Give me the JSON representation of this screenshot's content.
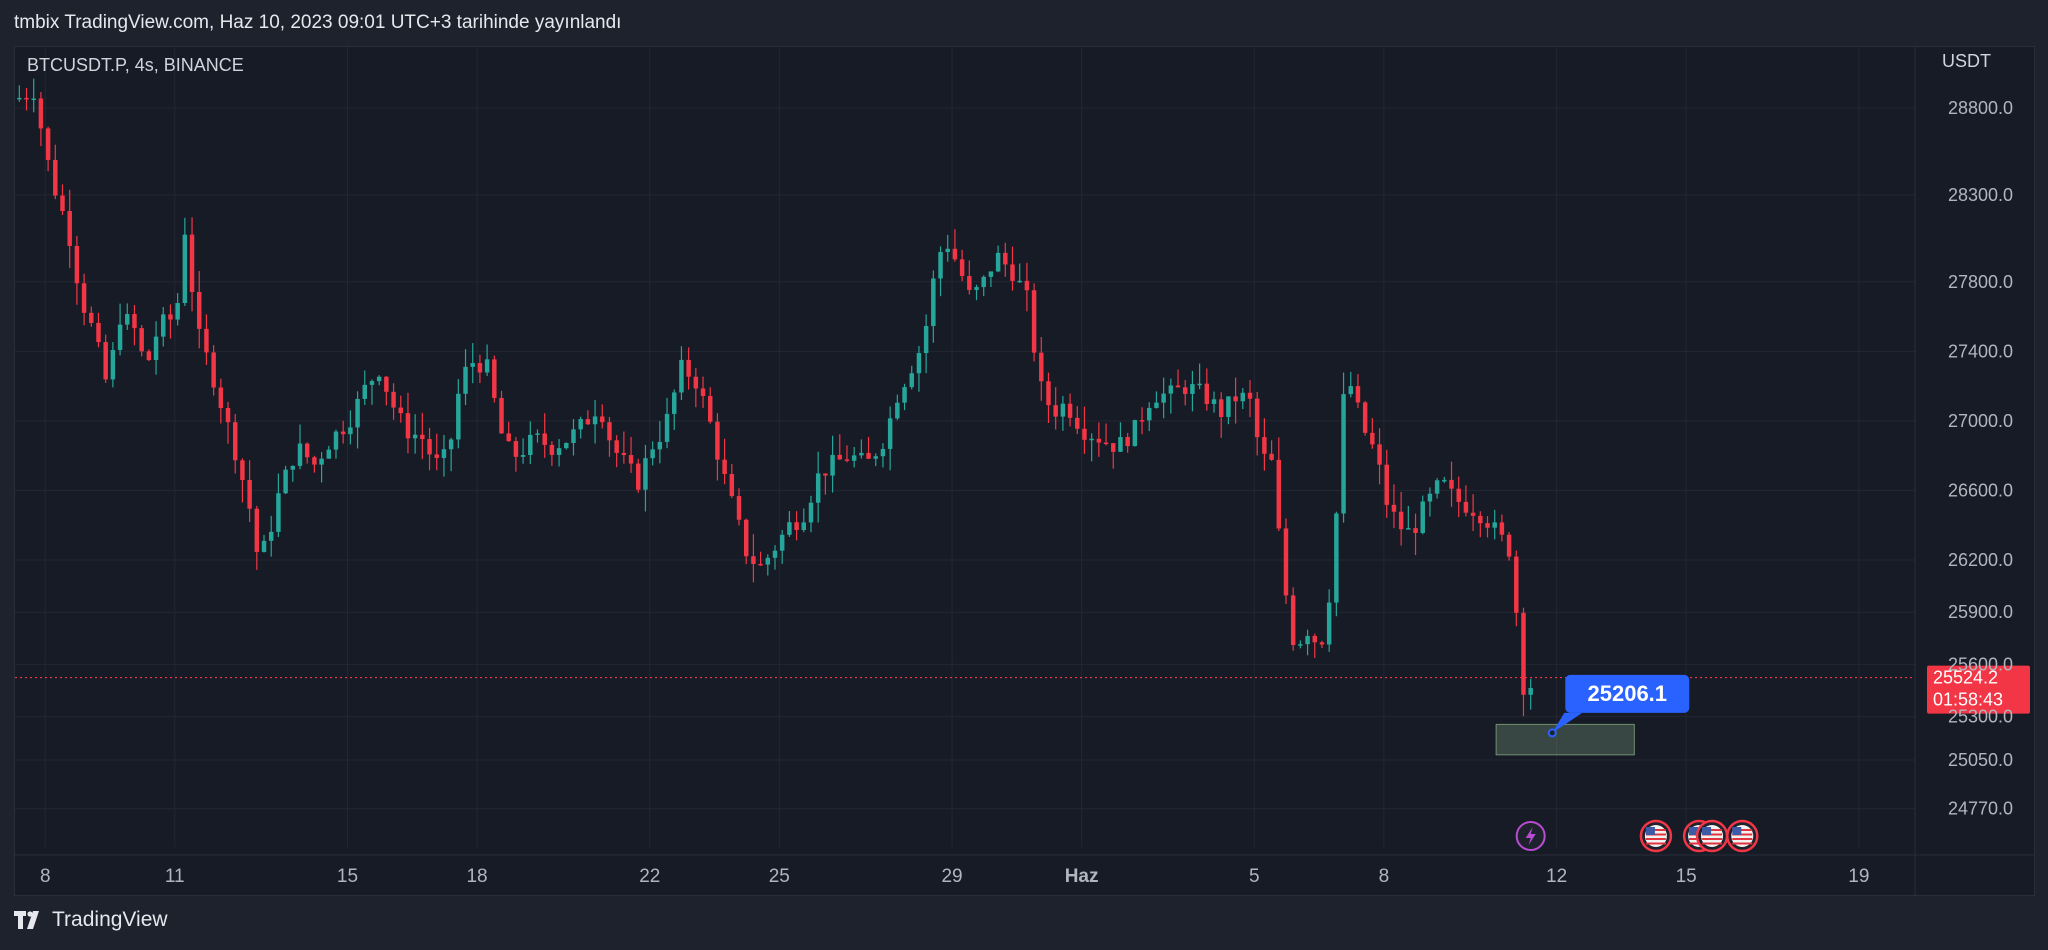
{
  "header": {
    "publish_text": "tmbix TradingView.com, Haz 10, 2023 09:01 UTC+3 tarihinde yayınlandı"
  },
  "symbol_text": "BTCUSDT.P, 4s, BINANCE",
  "currency_label": "USDT",
  "footer": {
    "brand": "TradingView"
  },
  "colors": {
    "up": "#26a69a",
    "down": "#f23645",
    "annotation": "#2962ff",
    "box": "#8fbc8f"
  },
  "chart_data": {
    "type": "candlestick",
    "title": "BTCUSDT.P, 4s, BINANCE",
    "ylabel": "USDT",
    "ylim": [
      24550,
      29150
    ],
    "yticks": [
      24770,
      25050,
      25300,
      25600,
      25900,
      26200,
      26600,
      27000,
      27400,
      27800,
      28300,
      28800
    ],
    "x_tick_labels": [
      {
        "label": "8",
        "day": 0
      },
      {
        "label": "11",
        "day": 3
      },
      {
        "label": "15",
        "day": 7
      },
      {
        "label": "18",
        "day": 10
      },
      {
        "label": "22",
        "day": 14
      },
      {
        "label": "25",
        "day": 17
      },
      {
        "label": "29",
        "day": 21
      },
      {
        "label": "Haz",
        "day": 24
      },
      {
        "label": "5",
        "day": 28
      },
      {
        "label": "8",
        "day": 31
      },
      {
        "label": "12",
        "day": 35
      },
      {
        "label": "15",
        "day": 38
      },
      {
        "label": "19",
        "day": 42
      }
    ],
    "x_range_days": [
      -0.7,
      43.3
    ],
    "series_points": [
      [
        -0.5,
        28850
      ],
      [
        -0.1,
        28900
      ],
      [
        0.3,
        28400
      ],
      [
        0.7,
        28100
      ],
      [
        1,
        27700
      ],
      [
        1.3,
        27500
      ],
      [
        1.6,
        27200
      ],
      [
        1.9,
        27600
      ],
      [
        2.2,
        27550
      ],
      [
        2.5,
        27300
      ],
      [
        2.8,
        27550
      ],
      [
        3.2,
        27600
      ],
      [
        3.4,
        28100
      ],
      [
        3.7,
        27500
      ],
      [
        4,
        27300
      ],
      [
        4.3,
        27050
      ],
      [
        4.6,
        26800
      ],
      [
        4.9,
        26500
      ],
      [
        5.1,
        26200
      ],
      [
        5.3,
        26300
      ],
      [
        5.6,
        26600
      ],
      [
        6,
        26850
      ],
      [
        6.4,
        26750
      ],
      [
        6.8,
        26900
      ],
      [
        7.2,
        27000
      ],
      [
        7.6,
        27200
      ],
      [
        7.9,
        27300
      ],
      [
        8.2,
        27100
      ],
      [
        8.5,
        26950
      ],
      [
        8.9,
        26900
      ],
      [
        9.2,
        26750
      ],
      [
        9.5,
        26800
      ],
      [
        9.8,
        27250
      ],
      [
        10.1,
        27350
      ],
      [
        10.4,
        27300
      ],
      [
        10.8,
        26850
      ],
      [
        11.1,
        26800
      ],
      [
        11.5,
        26900
      ],
      [
        11.9,
        26850
      ],
      [
        12.3,
        26900
      ],
      [
        12.7,
        27000
      ],
      [
        13,
        27100
      ],
      [
        13.3,
        26850
      ],
      [
        13.6,
        26750
      ],
      [
        13.9,
        26650
      ],
      [
        14.2,
        26850
      ],
      [
        14.5,
        26950
      ],
      [
        14.9,
        27300
      ],
      [
        15.2,
        27250
      ],
      [
        15.5,
        27050
      ],
      [
        15.8,
        26750
      ],
      [
        16.1,
        26500
      ],
      [
        16.4,
        26250
      ],
      [
        16.7,
        26150
      ],
      [
        17,
        26250
      ],
      [
        17.4,
        26400
      ],
      [
        17.7,
        26450
      ],
      [
        18.1,
        26700
      ],
      [
        18.4,
        26750
      ],
      [
        18.8,
        26800
      ],
      [
        19.2,
        26750
      ],
      [
        19.6,
        26900
      ],
      [
        19.9,
        27150
      ],
      [
        20.2,
        27300
      ],
      [
        20.5,
        27450
      ],
      [
        20.8,
        27900
      ],
      [
        21,
        28050
      ],
      [
        21.3,
        27900
      ],
      [
        21.6,
        27700
      ],
      [
        21.9,
        27800
      ],
      [
        22.2,
        27950
      ],
      [
        22.6,
        27850
      ],
      [
        22.9,
        27700
      ],
      [
        23.2,
        27200
      ],
      [
        23.5,
        27050
      ],
      [
        23.8,
        27100
      ],
      [
        24.2,
        26950
      ],
      [
        24.6,
        26900
      ],
      [
        25,
        26850
      ],
      [
        25.4,
        26950
      ],
      [
        25.8,
        27150
      ],
      [
        26.2,
        27150
      ],
      [
        26.6,
        27200
      ],
      [
        27,
        27150
      ],
      [
        27.4,
        27050
      ],
      [
        27.8,
        27150
      ],
      [
        28.1,
        27100
      ],
      [
        28.3,
        26800
      ],
      [
        28.6,
        26750
      ],
      [
        28.8,
        26150
      ],
      [
        29.1,
        25700
      ],
      [
        29.4,
        25800
      ],
      [
        29.7,
        25700
      ],
      [
        30,
        26150
      ],
      [
        30.2,
        27100
      ],
      [
        30.4,
        27200
      ],
      [
        30.7,
        26950
      ],
      [
        31,
        26800
      ],
      [
        31.2,
        26550
      ],
      [
        31.5,
        26400
      ],
      [
        31.8,
        26350
      ],
      [
        32.1,
        26500
      ],
      [
        32.5,
        26650
      ],
      [
        32.8,
        26550
      ],
      [
        33.2,
        26500
      ],
      [
        33.5,
        26450
      ],
      [
        33.8,
        26350
      ],
      [
        34.1,
        26250
      ],
      [
        34.4,
        25480
      ]
    ],
    "last_price": "25524.2",
    "countdown": "01:58:43",
    "annotation_price": "25206.1",
    "annotation_box_range": [
      25080,
      25255
    ],
    "annotation_box_days": [
      33.6,
      36.8
    ],
    "event_icons": [
      {
        "name": "lightning-event-icon",
        "day": 34.4
      },
      {
        "name": "us-flag-event-icon",
        "day": 37.3
      },
      {
        "name": "us-flag-event-icon",
        "day": 38.3
      },
      {
        "name": "us-flag-event-icon",
        "day": 38.6
      },
      {
        "name": "us-flag-event-icon",
        "day": 39.3
      }
    ]
  }
}
